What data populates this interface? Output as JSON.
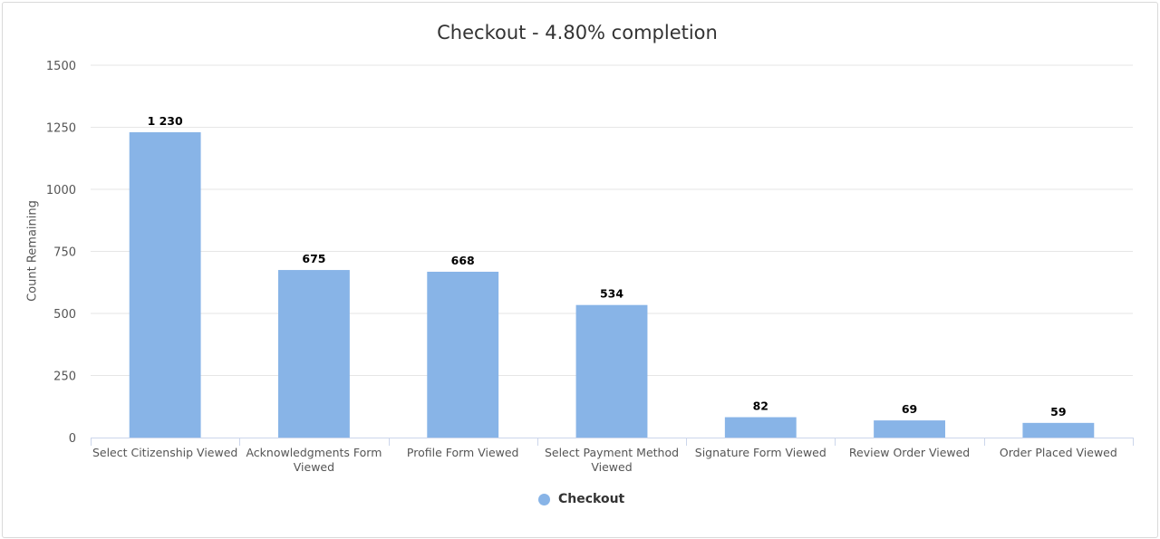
{
  "chart_data": {
    "type": "bar",
    "title": "Checkout - 4.80% completion",
    "ylabel": "Count Remaining",
    "xlabel": "",
    "ylim": [
      0,
      1500
    ],
    "yticks": [
      0,
      250,
      500,
      750,
      1000,
      1250,
      1500
    ],
    "grid": true,
    "legend_position": "bottom-center",
    "categories": [
      [
        "Select Citizenship Viewed"
      ],
      [
        "Acknowledgments Form",
        "Viewed"
      ],
      [
        "Profile Form Viewed"
      ],
      [
        "Select Payment Method",
        "Viewed"
      ],
      [
        "Signature Form Viewed"
      ],
      [
        "Review Order Viewed"
      ],
      [
        "Order Placed Viewed"
      ]
    ],
    "series": [
      {
        "name": "Checkout",
        "color": "#88b4e7",
        "values": [
          1230,
          675,
          668,
          534,
          82,
          69,
          59
        ],
        "data_labels": [
          "1 230",
          "675",
          "668",
          "534",
          "82",
          "69",
          "59"
        ]
      }
    ]
  }
}
